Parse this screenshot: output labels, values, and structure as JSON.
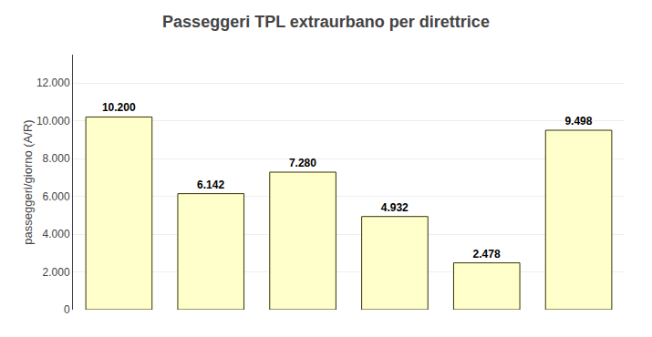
{
  "chart_data": {
    "type": "bar",
    "title": "Passeggeri TPL extraurbano per direttrice",
    "ylabel": "passeggeri/giorno (A/R)",
    "categories": [
      null,
      null,
      null,
      null,
      null,
      null
    ],
    "values": [
      10200,
      6142,
      7280,
      4932,
      2478,
      9498
    ],
    "value_labels": [
      "10.200",
      "6.142",
      "7.280",
      "4.932",
      "2.478",
      "9.498"
    ],
    "data_labels": true,
    "color": "#ffffcc",
    "ylim": [
      0,
      13500
    ],
    "yticks": [
      0,
      {
        "value": 2000,
        "label": "2.000"
      },
      {
        "value": 4000,
        "label": "4.000"
      },
      {
        "value": 6000,
        "label": "6.000"
      },
      {
        "value": 8000,
        "label": "8.000"
      },
      {
        "value": 10000,
        "label": "10.000"
      },
      {
        "value": 12000,
        "label": "12.000"
      }
    ],
    "grid": true,
    "tick_labels": "y"
  }
}
